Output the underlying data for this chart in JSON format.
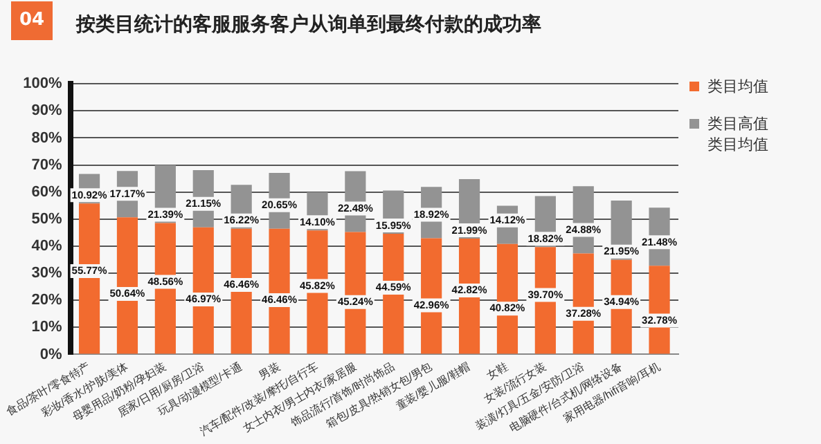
{
  "chart_data": {
    "type": "bar",
    "stacked": true,
    "title": "按类目统计的客服服务客户从询单到最终付款的成功率",
    "annotations": [
      "04"
    ],
    "categories": [
      "食品/茶叶/零食特产",
      "彩妆/香水/护肤/美体",
      "母婴用品/奶粉/孕妇装",
      "居家/日用/厨房/卫浴",
      "玩具/动漫模型/卡通",
      "男装",
      "汽车/配件/改装/摩托/自行车",
      "女士内衣/男士内衣/家居服",
      "饰品流行/首饰/时尚饰品",
      "箱包/皮具/热销女包/男包",
      "童装/婴儿服/鞋帽",
      "女鞋",
      "女装/流行女装",
      "装潢/灯具/五金/安防/卫浴",
      "电脑硬件/台式机/网络设备",
      "家用电器/hifi音响/耳机"
    ],
    "series": [
      {
        "name": "类目均值",
        "color": "#f26b2f",
        "values": [
          55.77,
          50.64,
          48.56,
          46.97,
          46.46,
          46.46,
          45.82,
          45.24,
          44.59,
          42.96,
          42.82,
          40.82,
          39.7,
          37.28,
          34.94,
          32.78
        ],
        "value_labels": [
          "55.77%",
          "50.64%",
          "48.56%",
          "46.97%",
          "46.46%",
          "46.46%",
          "45.82%",
          "45.24%",
          "44.59%",
          "42.96%",
          "42.82%",
          "40.82%",
          "39.70%",
          "37.28%",
          "34.94%",
          "32.78%"
        ]
      },
      {
        "name": "类目高值类目均值",
        "color": "#939393",
        "values": [
          10.92,
          17.17,
          21.39,
          21.15,
          16.22,
          20.65,
          14.1,
          22.48,
          15.95,
          18.92,
          21.99,
          14.12,
          18.82,
          24.88,
          21.95,
          21.48
        ],
        "value_labels": [
          "10.92%",
          "17.17%",
          "21.39%",
          "21.15%",
          "16.22%",
          "20.65%",
          "14.10%",
          "22.48%",
          "15.95%",
          "18.92%",
          "21.99%",
          "14.12%",
          "18.82%",
          "24.88%",
          "21.95%",
          "21.48%"
        ]
      }
    ],
    "ylim": [
      0,
      100
    ],
    "yticks": [
      {
        "value": 0,
        "label": "0%"
      },
      {
        "value": 10,
        "label": "10%"
      },
      {
        "value": 20,
        "label": "20%"
      },
      {
        "value": 30,
        "label": "30%"
      },
      {
        "value": 40,
        "label": "40%"
      },
      {
        "value": 50,
        "label": "50%"
      },
      {
        "value": 60,
        "label": "60%"
      },
      {
        "value": 70,
        "label": "70%"
      },
      {
        "value": 80,
        "label": "80%"
      },
      {
        "value": 90,
        "label": "90%"
      },
      {
        "value": 100,
        "label": "100%"
      }
    ],
    "grid": "y",
    "legend": "right"
  }
}
